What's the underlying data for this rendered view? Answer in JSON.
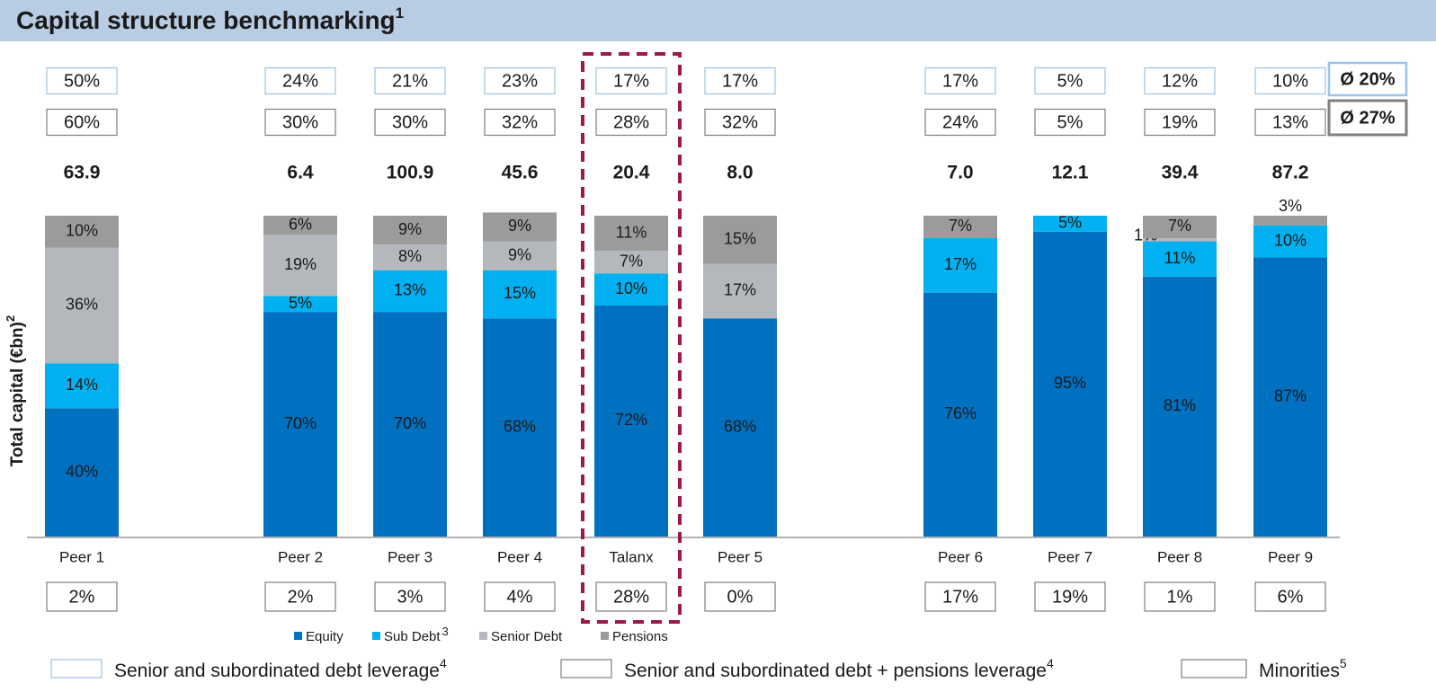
{
  "chart_data": {
    "type": "stacked_bar",
    "title": "Capital structure benchmarking",
    "title_note": "1",
    "y_label": "Total capital (€bn)",
    "y_label_note": "2",
    "ylim": [
      0,
      100
    ],
    "categories": [
      "Peer 1",
      "Peer 2",
      "Peer 3",
      "Peer 4",
      "Talanx",
      "Peer 5",
      "Peer 6",
      "Peer 7",
      "Peer 8",
      "Peer 9"
    ],
    "highlight": "Talanx",
    "series": [
      {
        "name": "Equity",
        "color": "#0070c0",
        "values": [
          40,
          70,
          70,
          68,
          72,
          68,
          76,
          95,
          81,
          87
        ],
        "value_labels": [
          "40%",
          "70%",
          "70%",
          "68%",
          "72%",
          "68%",
          "76%",
          "95%",
          "81%",
          "87%"
        ]
      },
      {
        "name": "Sub Debt",
        "name_note": "3",
        "color": "#00b0f0",
        "values": [
          14,
          5,
          13,
          15,
          10,
          null,
          17,
          5,
          11,
          10
        ],
        "value_labels": [
          "14%",
          "5%",
          "13%",
          "15%",
          "10%",
          null,
          "17%",
          "5%",
          "11%",
          "10%"
        ]
      },
      {
        "name": "Senior Debt",
        "color": "#b4b8bc",
        "values": [
          36,
          19,
          8,
          9,
          7,
          17,
          null,
          null,
          1,
          null
        ],
        "value_labels": [
          "36%",
          "19%",
          "8%",
          "9%",
          "7%",
          "17%",
          null,
          null,
          "1%",
          null
        ]
      },
      {
        "name": "Pensions",
        "color": "#9b9b9b",
        "values": [
          10,
          6,
          9,
          9,
          11,
          15,
          7,
          null,
          7,
          3
        ],
        "value_labels": [
          "10%",
          "6%",
          "9%",
          "9%",
          "11%",
          "15%",
          "7%",
          null,
          "7%",
          "3%"
        ]
      }
    ],
    "debt_leverage": {
      "name": "Senior and subordinated debt leverage",
      "note": "4",
      "values": [
        "50%",
        "24%",
        "21%",
        "23%",
        "17%",
        "17%",
        "17%",
        "5%",
        "12%",
        "10%"
      ],
      "average": "Ø 20%"
    },
    "debt_pensions_leverage": {
      "name": "Senior and subordinated debt + pensions leverage",
      "note": "4",
      "values": [
        "60%",
        "30%",
        "30%",
        "32%",
        "28%",
        "32%",
        "24%",
        "5%",
        "19%",
        "13%"
      ],
      "average": "Ø 27%"
    },
    "total_capital": [
      "63.9",
      "6.4",
      "100.9",
      "45.6",
      "20.4",
      "8.0",
      "7.0",
      "12.1",
      "39.4",
      "87.2"
    ],
    "minorities": {
      "name": "Minorities",
      "note": "5",
      "values": [
        "2%",
        "2%",
        "3%",
        "4%",
        "28%",
        "0%",
        "17%",
        "19%",
        "1%",
        "6%"
      ]
    }
  }
}
